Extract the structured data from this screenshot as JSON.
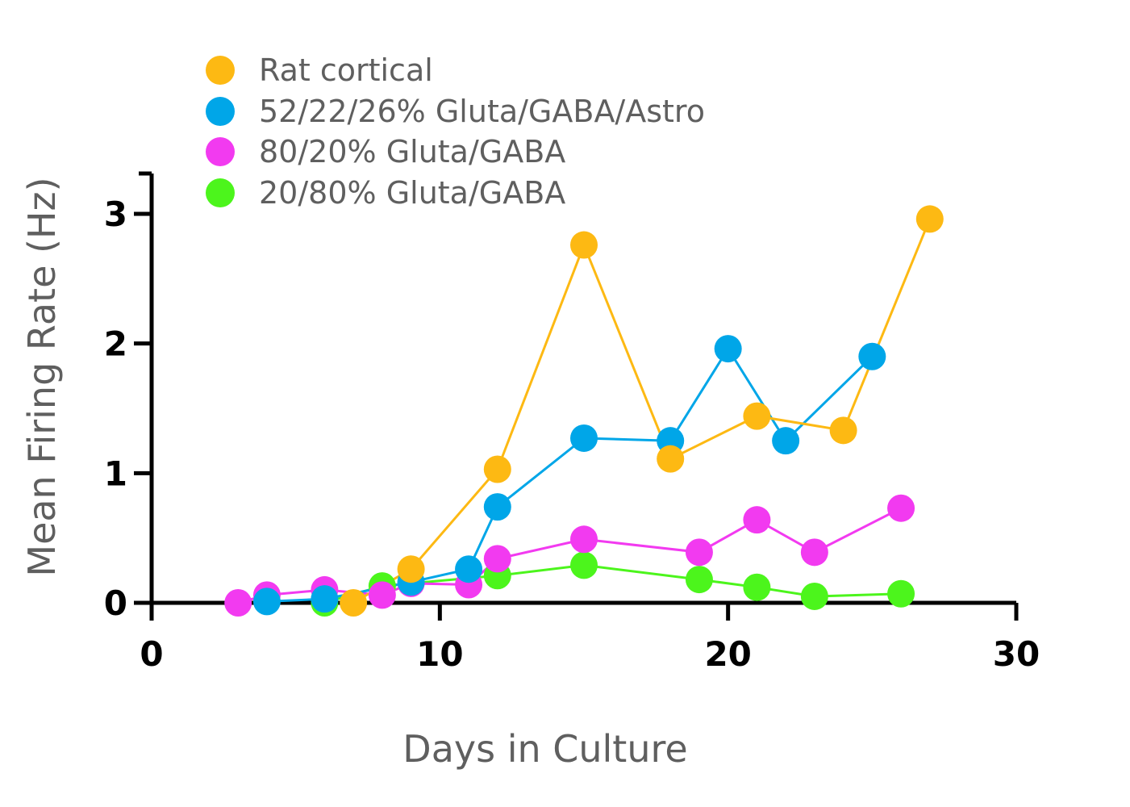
{
  "chart_data": {
    "type": "line",
    "xlabel": "Days in Culture",
    "ylabel": "Mean Firing Rate (Hz)",
    "xlim": [
      0,
      30
    ],
    "ylim": [
      0,
      3.3
    ],
    "xticks": [
      "0",
      "10",
      "20",
      "30"
    ],
    "yticks": [
      "0",
      "1",
      "2",
      "3"
    ],
    "grid": false,
    "legend_position": "top-left",
    "series": [
      {
        "name": "Rat cortical",
        "color": "#FDB913",
        "x": [
          7,
          9,
          12,
          15,
          18,
          21,
          24,
          27
        ],
        "y": [
          0.0,
          0.26,
          1.03,
          2.76,
          1.11,
          1.44,
          1.33,
          2.96
        ]
      },
      {
        "name": "52/22/26% Gluta/GABA/Astro",
        "color": "#00A6E8",
        "x": [
          4,
          6,
          9,
          11,
          12,
          15,
          18,
          20,
          22,
          25
        ],
        "y": [
          0.01,
          0.03,
          0.16,
          0.26,
          0.74,
          1.27,
          1.25,
          1.96,
          1.25,
          1.9
        ]
      },
      {
        "name": "80/20% Gluta/GABA",
        "color": "#F23AF0",
        "x": [
          3,
          4,
          6,
          8,
          9,
          11,
          12,
          15,
          19,
          21,
          23,
          26
        ],
        "y": [
          0.0,
          0.06,
          0.1,
          0.06,
          0.15,
          0.14,
          0.34,
          0.49,
          0.39,
          0.64,
          0.39,
          0.73
        ]
      },
      {
        "name": "20/80% Gluta/GABA",
        "color": "#4CF51C",
        "x": [
          6,
          8,
          12,
          15,
          19,
          21,
          23,
          26
        ],
        "y": [
          0.0,
          0.13,
          0.21,
          0.29,
          0.18,
          0.12,
          0.05,
          0.07
        ]
      }
    ]
  }
}
